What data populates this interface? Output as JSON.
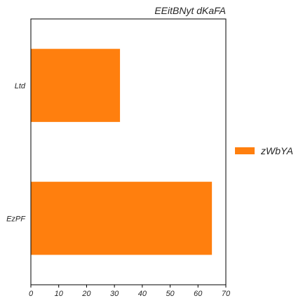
{
  "chart_data": {
    "type": "bar",
    "orientation": "horizontal",
    "title": "EEitBNyt dKaFA",
    "xlabel": "",
    "ylabel": "",
    "categories": [
      "Ltd",
      "EzPF"
    ],
    "series": [
      {
        "name": "zWbYA",
        "values": [
          32,
          65
        ],
        "color": "#ff7f0e"
      }
    ],
    "xlim": [
      0,
      70
    ],
    "xticks": [
      0,
      10,
      20,
      30,
      40,
      50,
      60,
      70
    ],
    "grid": false,
    "legend_position": "right"
  }
}
